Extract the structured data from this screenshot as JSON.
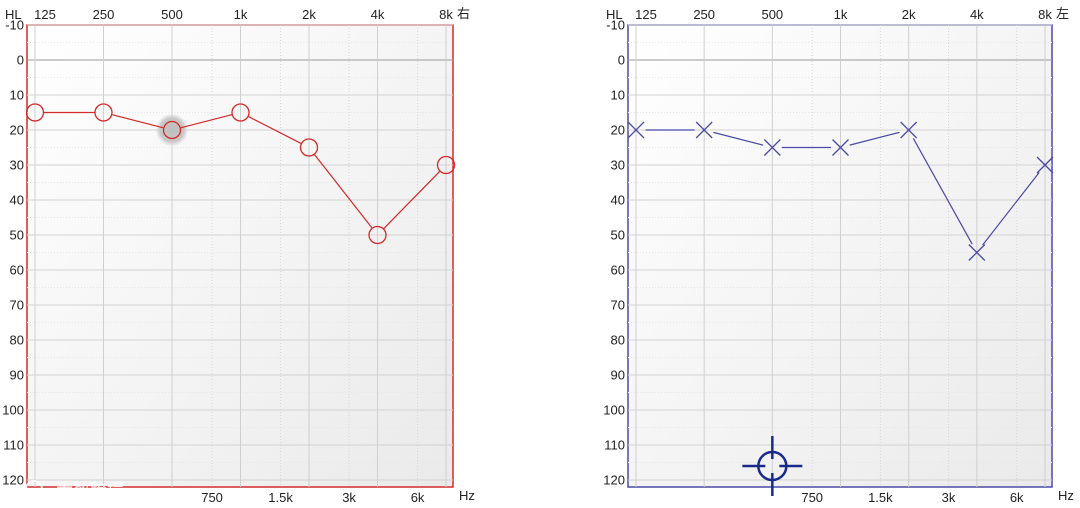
{
  "watermark": "大数跨境",
  "chart_data": [
    {
      "type": "line",
      "ear_label": "右",
      "hl_label": "HL",
      "hz_label": "Hz",
      "x_ticks_top": [
        "125",
        "250",
        "500",
        "1k",
        "2k",
        "4k",
        "8k"
      ],
      "x_ticks_bottom": [
        "750",
        "1.5k",
        "3k",
        "6k"
      ],
      "y_ticks": [
        -10,
        0,
        10,
        20,
        30,
        40,
        50,
        60,
        70,
        80,
        90,
        100,
        110,
        120
      ],
      "ylim": [
        -10,
        122
      ],
      "grid": true,
      "color": "#d42a2a",
      "series": [
        {
          "marker": "circle",
          "x": [
            "125",
            "250",
            "500",
            "1k",
            "2k",
            "4k",
            "8k"
          ],
          "values": [
            15,
            15,
            20,
            15,
            25,
            50,
            30
          ],
          "highlight_index": 2
        }
      ]
    },
    {
      "type": "line",
      "ear_label": "左",
      "hl_label": "HL",
      "hz_label": "Hz",
      "x_ticks_top": [
        "125",
        "250",
        "500",
        "1k",
        "2k",
        "4k",
        "8k"
      ],
      "x_ticks_bottom": [
        "750",
        "1.5k",
        "3k",
        "6k"
      ],
      "y_ticks": [
        -10,
        0,
        10,
        20,
        30,
        40,
        50,
        60,
        70,
        80,
        90,
        100,
        110,
        120
      ],
      "ylim": [
        -10,
        122
      ],
      "grid": true,
      "color": "#4a4aa8",
      "series": [
        {
          "marker": "x",
          "x": [
            "125",
            "250",
            "500",
            "1k",
            "2k",
            "4k",
            "8k"
          ],
          "values": [
            20,
            20,
            25,
            25,
            20,
            55,
            30
          ]
        }
      ],
      "cursor": {
        "x": "500",
        "y": 116
      }
    }
  ]
}
